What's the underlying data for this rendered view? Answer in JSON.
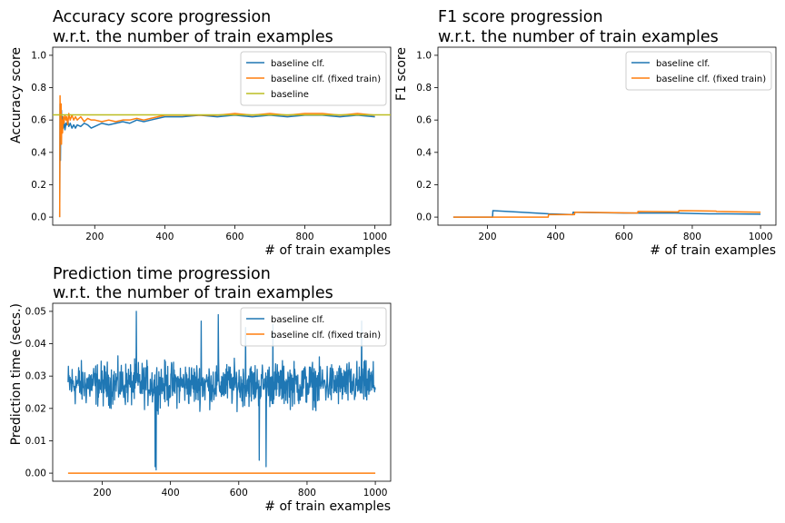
{
  "figure": {
    "background": "#ffffff"
  },
  "colors": {
    "blue": "#1f77b4",
    "orange": "#ff7f0e",
    "olive": "#bcbd22"
  },
  "chart_data": [
    {
      "id": "accuracy",
      "type": "line",
      "title": "Accuracy score progression\nw.r.t. the number of train examples",
      "xlabel": "# of train examples",
      "ylabel": "Accuracy score",
      "xlim": [
        80,
        1045
      ],
      "ylim": [
        -0.05,
        1.05
      ],
      "xticks": [
        200,
        400,
        600,
        800,
        1000
      ],
      "yticks": [
        0.0,
        0.2,
        0.4,
        0.6,
        0.8,
        1.0
      ],
      "ytick_labels": [
        "0.0",
        "0.2",
        "0.4",
        "0.6",
        "0.8",
        "1.0"
      ],
      "legend": {
        "placement": "upper right",
        "entries": [
          "baseline clf.",
          "baseline clf. (fixed train)",
          "baseline"
        ]
      },
      "series": [
        {
          "name": "baseline clf.",
          "color": "#1f77b4",
          "x": [
            100,
            101,
            102,
            103,
            104,
            105,
            106,
            108,
            110,
            112,
            115,
            118,
            120,
            123,
            126,
            130,
            135,
            140,
            145,
            150,
            160,
            170,
            180,
            190,
            200,
            220,
            240,
            260,
            280,
            300,
            320,
            340,
            360,
            380,
            400,
            450,
            500,
            550,
            600,
            650,
            700,
            750,
            800,
            850,
            900,
            950,
            1000
          ],
          "y": [
            0.0,
            0.7,
            0.35,
            0.6,
            0.5,
            0.66,
            0.58,
            0.62,
            0.55,
            0.6,
            0.54,
            0.58,
            0.57,
            0.6,
            0.56,
            0.58,
            0.55,
            0.57,
            0.55,
            0.57,
            0.56,
            0.58,
            0.57,
            0.55,
            0.56,
            0.58,
            0.57,
            0.58,
            0.59,
            0.58,
            0.6,
            0.59,
            0.6,
            0.61,
            0.62,
            0.62,
            0.63,
            0.62,
            0.63,
            0.62,
            0.63,
            0.62,
            0.63,
            0.63,
            0.62,
            0.63,
            0.62
          ]
        },
        {
          "name": "baseline clf. (fixed train)",
          "color": "#ff7f0e",
          "x": [
            100,
            101,
            102,
            103,
            104,
            105,
            106,
            108,
            110,
            112,
            115,
            118,
            120,
            123,
            126,
            130,
            135,
            140,
            145,
            150,
            160,
            170,
            180,
            190,
            200,
            220,
            240,
            260,
            280,
            300,
            320,
            340,
            360,
            380,
            400,
            450,
            500,
            550,
            600,
            650,
            700,
            750,
            800,
            850,
            900,
            950,
            1000
          ],
          "y": [
            0.0,
            0.75,
            0.5,
            0.66,
            0.7,
            0.45,
            0.6,
            0.52,
            0.62,
            0.58,
            0.63,
            0.6,
            0.62,
            0.57,
            0.64,
            0.6,
            0.63,
            0.6,
            0.62,
            0.6,
            0.62,
            0.59,
            0.61,
            0.6,
            0.6,
            0.59,
            0.6,
            0.59,
            0.6,
            0.6,
            0.61,
            0.6,
            0.61,
            0.62,
            0.63,
            0.63,
            0.63,
            0.63,
            0.64,
            0.63,
            0.64,
            0.63,
            0.64,
            0.64,
            0.63,
            0.64,
            0.63
          ]
        },
        {
          "name": "baseline",
          "color": "#bcbd22",
          "hline": 0.632
        }
      ]
    },
    {
      "id": "f1",
      "type": "line",
      "title": "F1 score progression\nw.r.t. the number of train examples",
      "xlabel": "# of train examples",
      "ylabel": "F1 score",
      "xlim": [
        55,
        1045
      ],
      "ylim": [
        -0.05,
        1.05
      ],
      "xticks": [
        200,
        400,
        600,
        800,
        1000
      ],
      "yticks": [
        0.0,
        0.2,
        0.4,
        0.6,
        0.8,
        1.0
      ],
      "ytick_labels": [
        "0.0",
        "0.2",
        "0.4",
        "0.6",
        "0.8",
        "1.0"
      ],
      "legend": {
        "placement": "upper right",
        "entries": [
          "baseline clf.",
          "baseline clf. (fixed train)"
        ]
      },
      "series": [
        {
          "name": "baseline clf.",
          "color": "#1f77b4",
          "x": [
            100,
            150,
            200,
            215,
            216,
            300,
            380,
            450,
            451,
            600,
            750,
            850,
            900,
            1000
          ],
          "y": [
            0.0,
            0.0,
            0.0,
            0.0,
            0.04,
            0.03,
            0.02,
            0.015,
            0.03,
            0.025,
            0.025,
            0.02,
            0.02,
            0.018
          ]
        },
        {
          "name": "baseline clf. (fixed train)",
          "color": "#ff7f0e",
          "x": [
            100,
            200,
            300,
            378,
            379,
            455,
            456,
            550,
            640,
            641,
            760,
            761,
            870,
            871,
            1000
          ],
          "y": [
            0.0,
            0.0,
            0.0,
            0.0,
            0.015,
            0.015,
            0.03,
            0.028,
            0.025,
            0.035,
            0.032,
            0.04,
            0.037,
            0.035,
            0.03
          ]
        }
      ]
    },
    {
      "id": "prediction_time",
      "type": "line",
      "title": "Prediction time progression\nw.r.t. the number of train examples",
      "xlabel": "# of train examples",
      "ylabel": "Prediction time (secs.)",
      "xlim": [
        55,
        1045
      ],
      "ylim": [
        -0.0025,
        0.0525
      ],
      "xticks": [
        200,
        400,
        600,
        800,
        1000
      ],
      "yticks": [
        0.0,
        0.01,
        0.02,
        0.03,
        0.04,
        0.05
      ],
      "ytick_labels": [
        "0.00",
        "0.01",
        "0.02",
        "0.03",
        "0.04",
        "0.05"
      ],
      "legend": {
        "placement": "upper right",
        "entries": [
          "baseline clf.",
          "baseline clf. (fixed train)"
        ]
      },
      "series": [
        {
          "name": "baseline clf.",
          "color": "#1f77b4",
          "noise": {
            "x_start": 100,
            "x_end": 1000,
            "mean": 0.0275,
            "amplitude": 0.007,
            "spikes": [
              {
                "x": 300,
                "y": 0.05
              },
              {
                "x": 355,
                "y": 0.002
              },
              {
                "x": 358,
                "y": 0.001
              },
              {
                "x": 490,
                "y": 0.047
              },
              {
                "x": 540,
                "y": 0.049
              },
              {
                "x": 620,
                "y": 0.045
              },
              {
                "x": 660,
                "y": 0.004
              },
              {
                "x": 680,
                "y": 0.002
              },
              {
                "x": 700,
                "y": 0.046
              },
              {
                "x": 960,
                "y": 0.047
              }
            ]
          }
        },
        {
          "name": "baseline clf. (fixed train)",
          "color": "#ff7f0e",
          "x": [
            100,
            1000
          ],
          "y": [
            0.0,
            0.0
          ]
        }
      ]
    }
  ]
}
